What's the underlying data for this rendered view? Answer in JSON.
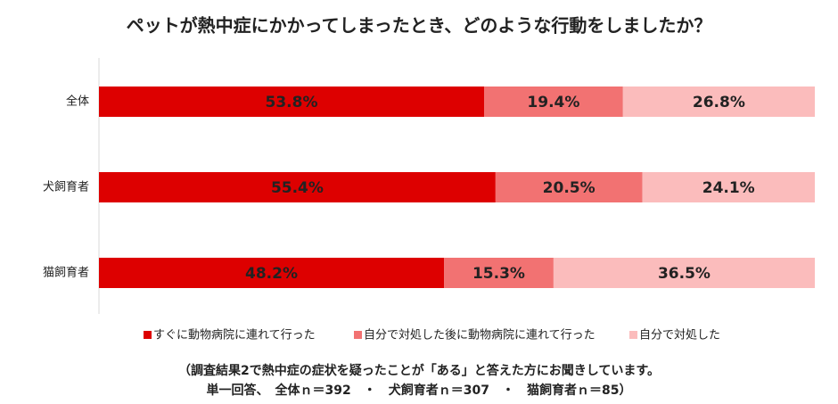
{
  "chart_data": {
    "type": "stacked_bar_horizontal",
    "title": "ペットが熱中症にかかってしまったとき、どのような行動をしましたか？",
    "categories": [
      "全体",
      "犬飼育者",
      "猫飼育者"
    ],
    "series": [
      {
        "name": "すぐに動物病院に連れて行った",
        "color": "#dd0000",
        "values": [
          53.8,
          55.4,
          48.2
        ],
        "value_labels": [
          "53.8%",
          "55.4%",
          "48.2%"
        ]
      },
      {
        "name": "自分で対処した後に動物病院に連れて行った",
        "color": "#f27272",
        "values": [
          19.4,
          20.5,
          15.3
        ],
        "value_labels": [
          "19.4%",
          "20.5%",
          "15.3%"
        ]
      },
      {
        "name": "自分で対処した",
        "color": "#fbbcbc",
        "values": [
          26.8,
          24.1,
          36.5
        ],
        "value_labels": [
          "26.8%",
          "24.1%",
          "36.5%"
        ]
      }
    ],
    "xlim": [
      0,
      100
    ],
    "notes": [
      "（調査結果2で熱中症の症状を疑ったことが「ある」と答えた方にお聞きしています。",
      "単一回答、　全体ｎ＝392　・　犬飼育者ｎ＝307　・　猫飼育者ｎ＝85）"
    ]
  }
}
